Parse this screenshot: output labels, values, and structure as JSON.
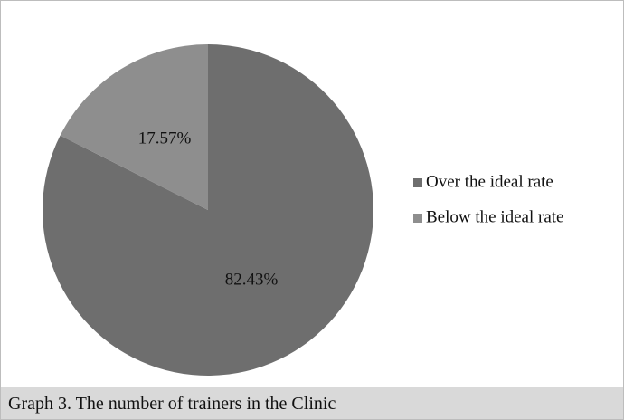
{
  "chart_data": {
    "type": "pie",
    "title": "Graph 3. The number of trainers in the Clinic",
    "categories": [
      "Over the ideal rate",
      "Below the ideal rate"
    ],
    "values": [
      82.43,
      17.57
    ],
    "value_labels": [
      "82.43%",
      "17.57%"
    ],
    "colors": [
      "#6e6e6e",
      "#8e8e8e"
    ],
    "legend": "right"
  }
}
